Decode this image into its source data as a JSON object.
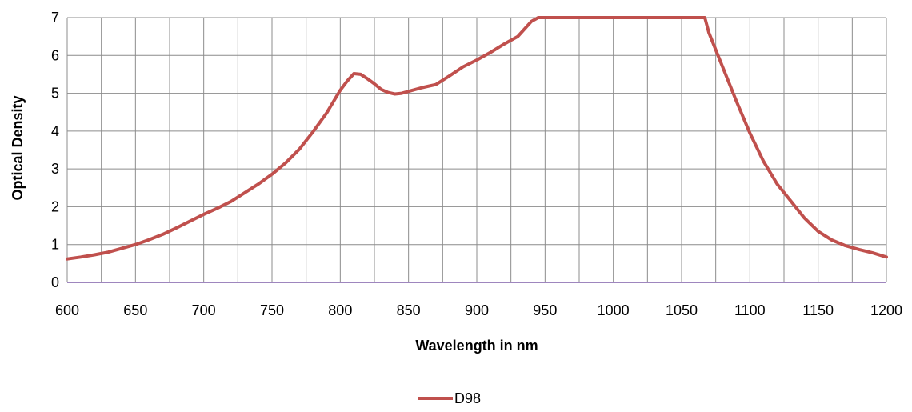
{
  "chart_data": {
    "type": "line",
    "title": "",
    "xlabel": "Wavelength in nm",
    "ylabel": "Optical Density",
    "xlim": [
      600,
      1200
    ],
    "ylim": [
      0,
      7
    ],
    "x_ticks": [
      600,
      650,
      700,
      750,
      800,
      850,
      900,
      950,
      1000,
      1050,
      1100,
      1150,
      1200
    ],
    "y_ticks": [
      0,
      1,
      2,
      3,
      4,
      5,
      6,
      7
    ],
    "grid": true,
    "legend_position": "bottom",
    "series": [
      {
        "name": "D98",
        "color": "#C0504D",
        "x": [
          600,
          610,
          620,
          630,
          640,
          650,
          660,
          670,
          680,
          690,
          700,
          710,
          720,
          730,
          740,
          750,
          760,
          770,
          780,
          790,
          800,
          805,
          810,
          815,
          820,
          825,
          830,
          835,
          840,
          845,
          850,
          860,
          870,
          880,
          890,
          900,
          910,
          920,
          930,
          940,
          945,
          950,
          1000,
          1050,
          1060,
          1067,
          1070,
          1080,
          1090,
          1100,
          1110,
          1120,
          1130,
          1140,
          1150,
          1160,
          1170,
          1180,
          1190,
          1200
        ],
        "values": [
          0.62,
          0.67,
          0.73,
          0.8,
          0.9,
          1.0,
          1.13,
          1.27,
          1.44,
          1.62,
          1.8,
          1.96,
          2.14,
          2.37,
          2.6,
          2.86,
          3.16,
          3.52,
          3.98,
          4.48,
          5.08,
          5.32,
          5.52,
          5.5,
          5.38,
          5.25,
          5.1,
          5.02,
          4.98,
          5.0,
          5.05,
          5.15,
          5.23,
          5.46,
          5.7,
          5.88,
          6.08,
          6.3,
          6.5,
          6.9,
          7.0,
          7.0,
          7.0,
          7.0,
          7.0,
          7.0,
          6.6,
          5.7,
          4.8,
          3.95,
          3.2,
          2.6,
          2.15,
          1.7,
          1.35,
          1.12,
          0.97,
          0.87,
          0.78,
          0.67
        ]
      }
    ]
  }
}
